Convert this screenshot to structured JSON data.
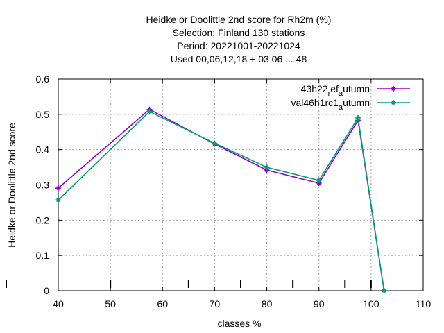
{
  "chart_data": {
    "type": "line",
    "title_lines": [
      "Heidke or Doolittle 2nd score  for Rh2m (%)",
      "Selection: Finland    130 stations",
      "Period: 20221001-20221024",
      "Used  00,06,12,18  + 03 06 ... 48"
    ],
    "xlabel": "classes %",
    "ylabel": "Heidke or Doolittle 2nd score",
    "xlim": [
      40,
      110
    ],
    "ylim": [
      0,
      0.6
    ],
    "xticks": [
      40,
      50,
      60,
      70,
      80,
      90,
      100,
      110
    ],
    "yticks": [
      0,
      0.1,
      0.2,
      0.3,
      0.4,
      0.5,
      0.6
    ],
    "ytick_labels": [
      "0",
      "0.1",
      "0.2",
      "0.3",
      "0.4",
      "0.5",
      "0.6"
    ],
    "grid": true,
    "legend_position": "top-right",
    "bottom_marks_x": [
      50,
      65,
      75,
      85,
      95,
      100
    ],
    "series": [
      {
        "name_parts": [
          "43h22",
          "r",
          "ef",
          "a",
          "utumn"
        ],
        "color": "#9400d3",
        "x": [
          40,
          57.5,
          70,
          80,
          90,
          97.5,
          102.5
        ],
        "y": [
          0.291,
          0.514,
          0.416,
          0.342,
          0.305,
          0.483,
          0.0
        ]
      },
      {
        "name_parts": [
          "val46h1rc1",
          "",
          "",
          "a",
          "utumn"
        ],
        "color": "#009e73",
        "x": [
          40,
          57.5,
          70,
          80,
          90,
          97.5,
          102.5
        ],
        "y": [
          0.257,
          0.508,
          0.418,
          0.35,
          0.313,
          0.49,
          0.0
        ]
      }
    ]
  }
}
